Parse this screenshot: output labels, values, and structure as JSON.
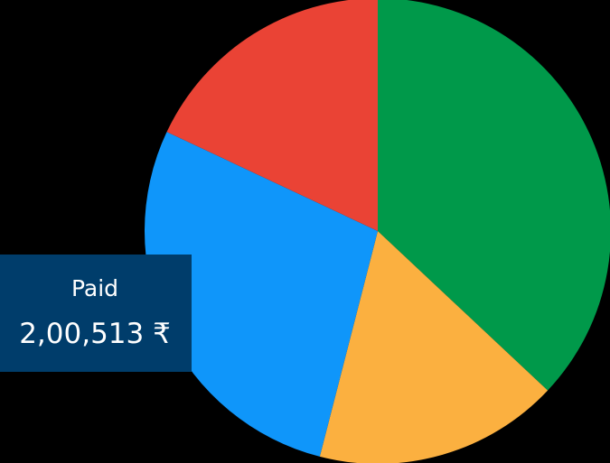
{
  "chart_data": {
    "type": "pie",
    "slices": [
      {
        "value": 37,
        "color": "#00994a"
      },
      {
        "value": 17,
        "color": "#fbb040"
      },
      {
        "value": 28,
        "color": "#0f96fa"
      },
      {
        "value": 18,
        "color": "#ea4335"
      }
    ],
    "tooltip": {
      "label": "Paid",
      "value": "2,00,513 ₹",
      "color": "#003d6b"
    }
  }
}
